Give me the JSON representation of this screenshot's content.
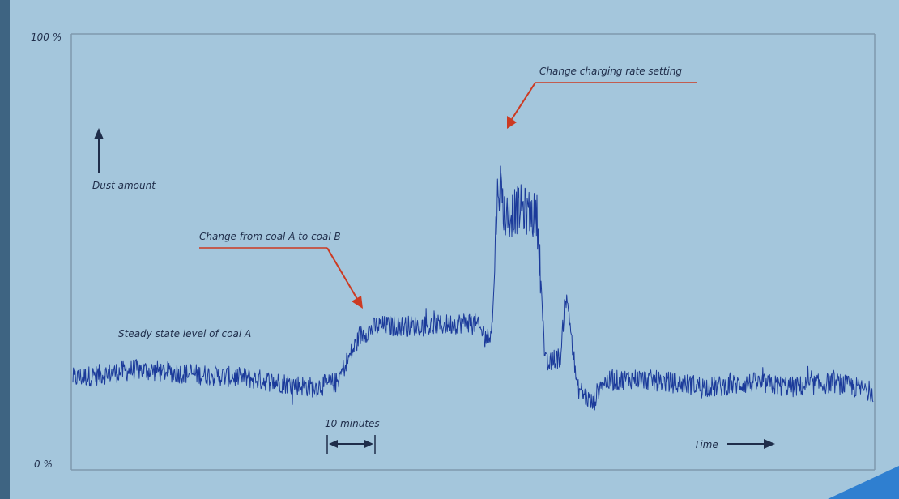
{
  "chart_data": {
    "type": "line",
    "title": "",
    "ylabel": "Dust amount",
    "xlabel": "Time",
    "y_tick_labels": [
      "100 %",
      "0 %"
    ],
    "ylim": [
      0,
      100
    ],
    "xlim": [
      0,
      100
    ],
    "grid": false,
    "x_unit_note": "10 minutes",
    "x_minutes_per_unit": 0.175,
    "series": [
      {
        "x": [
          0,
          8,
          15,
          22,
          30,
          33,
          34,
          36,
          38,
          40,
          45,
          50,
          52,
          52.5,
          53,
          53.4,
          54,
          56,
          58,
          58.5,
          59,
          59.4,
          60,
          61,
          61.5,
          62,
          63,
          64,
          65,
          66,
          70,
          75,
          80,
          85,
          90,
          95,
          100
        ],
        "y": [
          21,
          23,
          22,
          21,
          19,
          20,
          24,
          31,
          33,
          33,
          33,
          34,
          30,
          36,
          62,
          66,
          58,
          60,
          58,
          44,
          25,
          24,
          25,
          26,
          40,
          36,
          19,
          17,
          15,
          20,
          21,
          20,
          19,
          20,
          19,
          20,
          18
        ]
      }
    ],
    "annotations": [
      {
        "text": "Steady state level of coal A"
      },
      {
        "text": "Change from coal A to coal B"
      },
      {
        "text": "Change charging rate setting"
      }
    ],
    "colors": {
      "background": "#a4c6dc",
      "series": "#1b3a9a",
      "frame": "#7f98ad",
      "arrow": "#cc3a22",
      "text": "#1f2d4a",
      "side_bar": "#3e6482",
      "corner": "#2f7fd0"
    }
  }
}
